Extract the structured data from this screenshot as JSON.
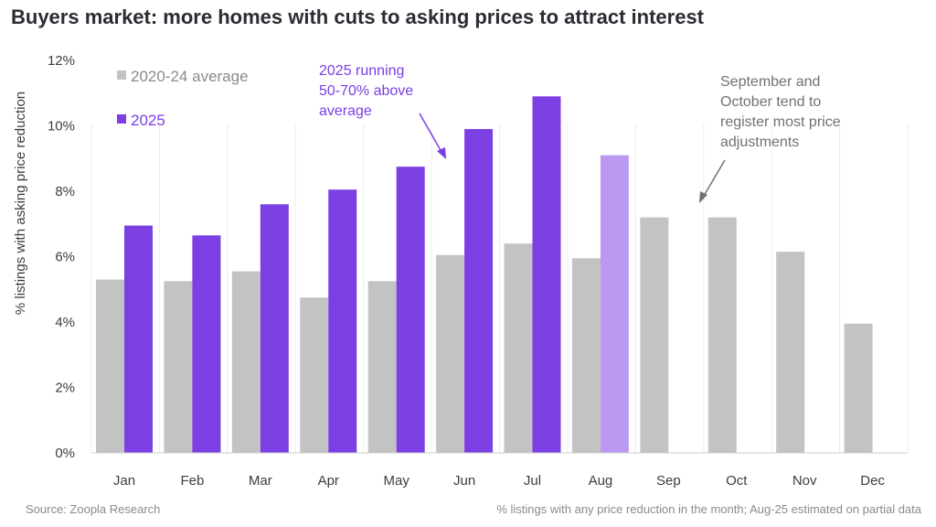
{
  "chart_data": {
    "type": "bar",
    "title": "Buyers market: more homes with cuts to asking prices to attract interest",
    "ylabel": "% listings with asking price reduction",
    "ylim": [
      0,
      12
    ],
    "yticks": [
      "0%",
      "2%",
      "4%",
      "6%",
      "8%",
      "10%",
      "12%"
    ],
    "grid": "vertical",
    "legend_position": "top-left",
    "categories": [
      "Jan",
      "Feb",
      "Mar",
      "Apr",
      "May",
      "Jun",
      "Jul",
      "Aug",
      "Sep",
      "Oct",
      "Nov",
      "Dec"
    ],
    "series": [
      {
        "name": "2020-24 average",
        "color": "#c3c3c3",
        "values": [
          5.3,
          5.25,
          5.55,
          4.75,
          5.25,
          6.05,
          6.4,
          5.95,
          7.2,
          7.2,
          6.15,
          3.95
        ]
      },
      {
        "name": "2025",
        "color": "#7b3fe4",
        "estimate_color": "#b99af0",
        "estimated_categories": [
          "Aug"
        ],
        "values": [
          6.95,
          6.65,
          7.6,
          8.05,
          8.75,
          9.9,
          10.9,
          9.1,
          null,
          null,
          null,
          null
        ]
      }
    ],
    "annotations": [
      {
        "text": [
          "2025 running",
          "50-70% above",
          "average"
        ],
        "color": "#7b3fe4"
      },
      {
        "text": [
          "September and",
          "October tend to",
          "register most price",
          "adjustments"
        ],
        "color": "#707078"
      }
    ]
  },
  "footer": {
    "source": "Source: Zoopla Research",
    "note": "% listings with any price reduction in the month; Aug-25 estimated on partial data"
  }
}
